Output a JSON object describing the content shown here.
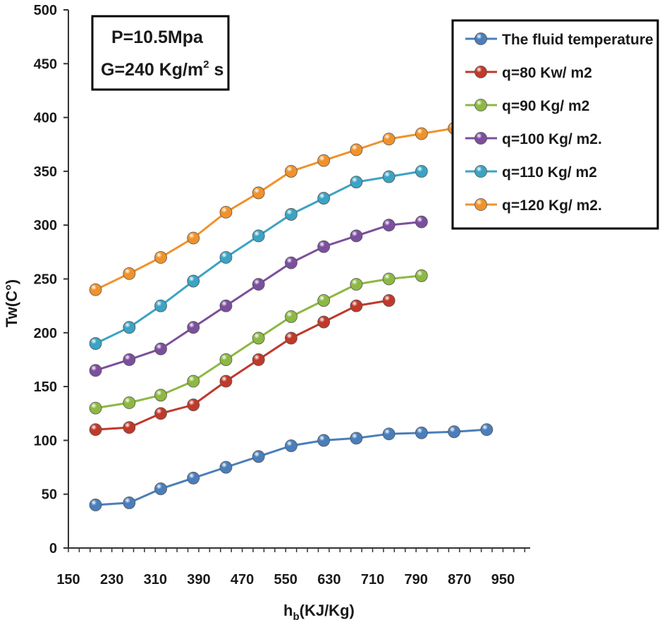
{
  "chart_data": {
    "type": "line",
    "title": "",
    "xlabel_main": "h",
    "xlabel_sub": "b",
    "xlabel_rest": "(KJ/Kg)",
    "ylabel": "Tw(C°)",
    "xlim": [
      150,
      1000
    ],
    "ylim": [
      0,
      500
    ],
    "xticks": [
      "150",
      "230",
      "310",
      "390",
      "470",
      "550",
      "630",
      "710",
      "790",
      "870",
      "950"
    ],
    "yticks": [
      "0",
      "50",
      "100",
      "150",
      "200",
      "250",
      "300",
      "350",
      "400",
      "450",
      "500"
    ],
    "annotation": {
      "line1": "P=10.5Mpa",
      "line2_prefix": "G=240 Kg/m",
      "line2_sup": "2",
      "line2_suffix": " s"
    },
    "legend_position": "top-right",
    "series": [
      {
        "name": "The fluid temperature",
        "color": "#4A7EBB",
        "x": [
          200,
          262,
          320,
          380,
          440,
          500,
          560,
          620,
          680,
          740,
          800,
          860,
          920
        ],
        "y": [
          40,
          42,
          55,
          65,
          75,
          85,
          95,
          100,
          102,
          106,
          107,
          108,
          110
        ]
      },
      {
        "name": "q=80 Kw/ m2",
        "color": "#C0392B",
        "x": [
          200,
          262,
          320,
          380,
          440,
          500,
          560,
          620,
          680,
          740
        ],
        "y": [
          110,
          112,
          125,
          133,
          155,
          175,
          195,
          210,
          225,
          230
        ]
      },
      {
        "name": "q=90 Kg/ m2",
        "color": "#8DB843",
        "x": [
          200,
          262,
          320,
          380,
          440,
          500,
          560,
          620,
          680,
          740,
          800
        ],
        "y": [
          130,
          135,
          142,
          155,
          175,
          195,
          215,
          230,
          245,
          250,
          253
        ]
      },
      {
        "name": "q=100 Kg/ m2.",
        "color": "#7B4F9D",
        "x": [
          200,
          262,
          320,
          380,
          440,
          500,
          560,
          620,
          680,
          740,
          800
        ],
        "y": [
          165,
          175,
          185,
          205,
          225,
          245,
          265,
          280,
          290,
          300,
          303
        ]
      },
      {
        "name": "q=110 Kg/ m2",
        "color": "#3BA3C4",
        "x": [
          200,
          262,
          320,
          380,
          440,
          500,
          560,
          620,
          680,
          740,
          800
        ],
        "y": [
          190,
          205,
          225,
          248,
          270,
          290,
          310,
          325,
          340,
          345,
          350
        ]
      },
      {
        "name": "q=120 Kg/ m2.",
        "color": "#F0922B",
        "x": [
          200,
          262,
          320,
          380,
          440,
          500,
          560,
          620,
          680,
          740,
          800,
          860
        ],
        "y": [
          240,
          255,
          270,
          288,
          312,
          330,
          350,
          360,
          370,
          380,
          385,
          390
        ]
      }
    ]
  }
}
